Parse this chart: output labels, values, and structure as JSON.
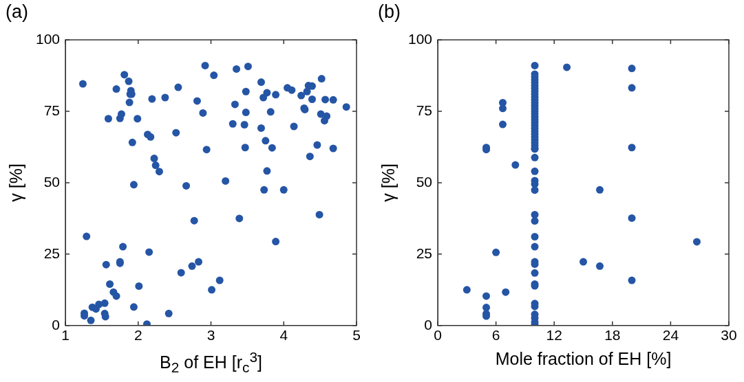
{
  "chart_data": [
    {
      "type": "scatter",
      "title": "(a)",
      "xlabel": "B$_{2}$ of EH [r$_{c}$$^{3}$]",
      "ylabel": "γ [%]",
      "color": "#2555a5",
      "marker": "circle",
      "grid": false,
      "xlim": [
        1,
        5
      ],
      "xticks": [
        1,
        2,
        3,
        4,
        5
      ],
      "ylim": [
        0,
        100
      ],
      "yticks": [
        0,
        25,
        50,
        75,
        100
      ],
      "x": [
        1.24,
        1.81,
        1.87,
        1.7,
        1.9,
        1.91,
        1.89,
        1.88,
        2.19,
        2.37,
        2.55,
        2.81,
        2.92,
        3.04,
        3.35,
        3.51,
        3.69,
        3.48,
        3.77,
        3.72,
        3.89,
        4.05,
        4.11,
        4.34,
        4.39,
        4.32,
        4.52,
        4.24,
        4.39,
        4.57,
        4.68,
        4.86,
        3.33,
        3.48,
        3.82,
        4.28,
        4.29,
        4.51,
        4.59,
        4.56,
        4.14,
        1.59,
        1.75,
        1.77,
        1.99,
        2.89,
        3.3,
        3.46,
        3.69,
        2.13,
        2.17,
        2.52,
        1.92,
        3.75,
        3.47,
        3.84,
        2.94,
        4.46,
        4.68,
        4.36,
        2.22,
        2.24,
        2.29,
        3.77,
        1.94,
        2.66,
        3.2,
        3.73,
        4.0,
        4.49,
        2.77,
        3.39,
        1.29,
        3.89,
        1.79,
        2.15,
        1.56,
        1.75,
        1.75,
        2.83,
        2.74,
        2.59,
        3.12,
        3.01,
        1.61,
        2.01,
        1.66,
        1.7,
        1.54,
        1.46,
        1.37,
        1.42,
        1.94,
        1.26,
        1.26,
        1.54,
        1.55,
        1.35,
        2.42,
        2.12
      ],
      "values": [
        84.6,
        87.8,
        85.5,
        82.8,
        82.2,
        81,
        81,
        78.1,
        79.3,
        79.8,
        83.4,
        78.6,
        91,
        87.6,
        89.8,
        90.7,
        85.2,
        81.9,
        81.5,
        79.8,
        80.8,
        83.2,
        82.4,
        84,
        83.8,
        81.9,
        86.4,
        80.5,
        79.2,
        79.1,
        79,
        76.5,
        77.4,
        74.6,
        74.8,
        76.1,
        75.6,
        74,
        73.3,
        71.7,
        69.7,
        72.4,
        72.5,
        74,
        72.4,
        74.4,
        70.6,
        70.3,
        69.1,
        66.9,
        66,
        67.5,
        64.1,
        64.7,
        62.3,
        62.2,
        61.6,
        63.2,
        62,
        59.2,
        58.5,
        56.1,
        53.9,
        54.1,
        49.3,
        48.9,
        50.6,
        47.5,
        47.5,
        38.8,
        36.7,
        37.5,
        31.2,
        29.4,
        27.6,
        25.7,
        21.3,
        22.3,
        21.8,
        22.3,
        20.8,
        18.5,
        15.8,
        12.5,
        14.5,
        13.8,
        11.7,
        10.3,
        7.8,
        7.4,
        6.4,
        5.8,
        6.5,
        4.3,
        3.4,
        4.2,
        3.1,
        1.8,
        4.2,
        0.5
      ]
    },
    {
      "type": "scatter",
      "title": "(b)",
      "xlabel": "Mole fraction of EH [%]",
      "ylabel": "γ [%]",
      "color": "#2555a5",
      "marker": "circle",
      "grid": false,
      "xlim": [
        0,
        30
      ],
      "xticks": [
        0,
        6,
        12,
        18,
        24,
        30
      ],
      "ylim": [
        0,
        100
      ],
      "yticks": [
        0,
        25,
        50,
        75,
        100
      ],
      "x": [
        13.3,
        20,
        20,
        6.7,
        6.7,
        6.7,
        5,
        5,
        8,
        20,
        16.7,
        20,
        26.7,
        6,
        15,
        16.7,
        20,
        3,
        7,
        5,
        5,
        5,
        5,
        10,
        10,
        10,
        10,
        10,
        10,
        10,
        10,
        10,
        10,
        10,
        10,
        10,
        10,
        10,
        10,
        10,
        10,
        10,
        10,
        10,
        10,
        10,
        10,
        10,
        10,
        10,
        10,
        10,
        10,
        10,
        10,
        10,
        10,
        10,
        10,
        10,
        10,
        10,
        10,
        10,
        10,
        10,
        10,
        10,
        10,
        10,
        10,
        10
      ],
      "values": [
        90.4,
        90,
        83.2,
        78,
        76,
        70.4,
        62.3,
        61.6,
        56.2,
        62.3,
        47.5,
        37.6,
        29.3,
        25.6,
        22.3,
        20.8,
        15.8,
        12.5,
        11.7,
        10.3,
        6.3,
        4.1,
        3.3,
        91,
        88,
        87,
        86,
        85,
        84,
        83,
        82,
        81,
        80,
        79,
        78,
        77,
        76,
        75,
        74,
        73,
        72,
        71,
        70,
        69,
        68,
        67,
        66,
        65,
        64,
        63,
        62,
        61.8,
        58.8,
        54,
        50.7,
        49.5,
        47.4,
        38.8,
        36.6,
        31.1,
        27.6,
        22.3,
        21.5,
        18.4,
        14.5,
        13.9,
        7.7,
        6.7,
        3.9,
        2.6,
        1.2,
        0.3
      ]
    }
  ]
}
